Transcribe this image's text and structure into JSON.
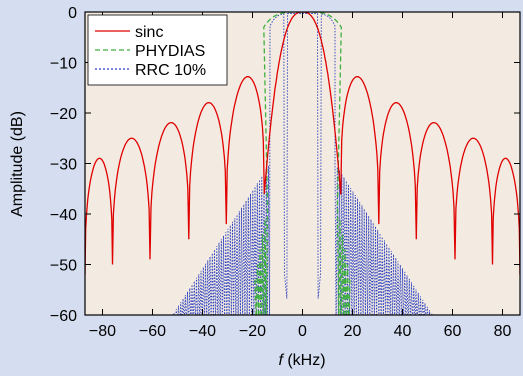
{
  "chart_data": {
    "type": "line",
    "title": "",
    "xlabel_var": "f",
    "xlabel_unit": " (kHz)",
    "ylabel": "Amplitude (dB)",
    "xlim": [
      -87,
      87
    ],
    "ylim": [
      -60,
      0
    ],
    "xticks": [
      -80,
      -60,
      -40,
      -20,
      0,
      20,
      40,
      60,
      80
    ],
    "yticks": [
      0,
      -10,
      -20,
      -30,
      -40,
      -50,
      -60
    ],
    "ytick_labels": [
      "0",
      "−10",
      "−20",
      "−30",
      "−40",
      "−50",
      "−60"
    ],
    "xtick_labels": [
      "−80",
      "−60",
      "−40",
      "−20",
      "0",
      "20",
      "40",
      "60",
      "80"
    ],
    "grid": false,
    "legend_position": "top-left",
    "series": [
      {
        "name": "sinc",
        "color": "#e00000",
        "style": "solid",
        "main_lobe": {
          "peak": 0,
          "edge_x": 15.3,
          "edge_y": -36
        },
        "side_lobe_peaks": [
          [
            -80,
            -29
          ],
          [
            -67,
            -25
          ],
          [
            -52,
            -22
          ],
          [
            -37,
            -18
          ],
          [
            -23,
            -13
          ],
          [
            23,
            -13
          ],
          [
            37,
            -18
          ],
          [
            52,
            -22
          ],
          [
            67,
            -25
          ],
          [
            80,
            -29
          ]
        ],
        "nulls": [
          [
            -76,
            -50
          ],
          [
            -61,
            -49
          ],
          [
            -45.5,
            -45
          ],
          [
            -30.5,
            -42
          ],
          [
            30.5,
            -42
          ],
          [
            45.5,
            -45
          ],
          [
            61,
            -49
          ],
          [
            76,
            -50
          ]
        ]
      },
      {
        "name": "PHYDIAS",
        "color": "#3fb03f",
        "style": "dashed",
        "main_lobe": {
          "peak": 0,
          "half_width": 15.5
        },
        "skirt_span": [
          14,
          19
        ]
      },
      {
        "name": "RRC 10%",
        "color": "#2a3fbf",
        "style": "dotted",
        "main_lobe": {
          "peak": 0,
          "half_width": 13
        },
        "center_notch_depth": -57,
        "skirt_span": [
          13,
          52
        ]
      }
    ]
  }
}
